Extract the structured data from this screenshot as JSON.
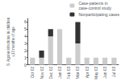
{
  "chart_data": {
    "type": "bar",
    "stacked": true,
    "categories": [
      "Oct 02",
      "Nov 02",
      "Dec 02",
      "Jan 03",
      "Feb 03",
      "Mar 03",
      "Apr 03",
      "May 03",
      "Jun 03",
      "Jul 03"
    ],
    "series": [
      {
        "name": "Case-patients in\ncase-control study",
        "color": "#cccccc",
        "values": [
          1,
          1,
          4,
          5,
          1,
          3,
          1,
          1,
          1,
          1
        ]
      },
      {
        "name": "Nonparticipating cases",
        "color": "#333333",
        "values": [
          0,
          1,
          1,
          0,
          0,
          3,
          0,
          0,
          0,
          0
        ]
      }
    ],
    "ylabel": "S. Agona infections in children\n≤13 months of age",
    "ylim": [
      0,
      6.5
    ],
    "yticks": [
      0,
      1,
      2,
      3,
      4,
      5,
      6
    ],
    "grid": false,
    "legend": "upper right"
  }
}
